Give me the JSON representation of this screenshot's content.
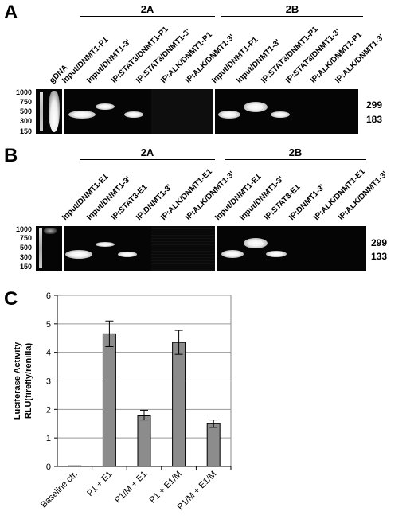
{
  "panelA": {
    "letter": "A",
    "groups": [
      "2A",
      "2B"
    ],
    "gdna_label": "gDNA",
    "ladder": [
      "1000",
      "750",
      "500",
      "300",
      "150"
    ],
    "lanes_2A": [
      "Input/DNMT1-P1",
      "Input/DNMT1-3'",
      "IP:STAT3/DNMT1-P1",
      "IP:STAT3/DNMT1-3'",
      "IP:ALK/DNMT1-P1",
      "IP:ALK/DNMT1-3'"
    ],
    "lanes_2B": [
      "Input/DNMT1-P1",
      "Input/DNMT1-3'",
      "IP:STAT3/DNMT1-P1",
      "IP:STAT3/DNMT1-3'",
      "IP:ALK/DNMT1-P1",
      "IP:ALK/DNMT1-3'"
    ],
    "band_sizes": [
      "299",
      "183"
    ]
  },
  "panelB": {
    "letter": "B",
    "groups": [
      "2A",
      "2B"
    ],
    "ladder": [
      "1000",
      "750",
      "500",
      "300",
      "150"
    ],
    "lanes_2A": [
      "Input/DNMT1-E1",
      "Input/DNMT1-3'",
      "IP:STAT3-E1",
      "IP:DNMT1-3'",
      "IP:ALK/DNMT1-E1",
      "IP:ALK/DNMT1-3'"
    ],
    "lanes_2B": [
      "Input/DNMT1-E1",
      "Input/DNMT1-3'",
      "IP:STAT3-E1",
      "IP:DNMT1-3'",
      "IP:ALK/DNMT1-E1",
      "IP:ALK/DNMT1-3'"
    ],
    "band_sizes": [
      "299",
      "133"
    ]
  },
  "panelC": {
    "letter": "C"
  },
  "chart_data": {
    "type": "bar",
    "categories": [
      "Baseline ctr.",
      "P1 + E1",
      "P1/M + E1",
      "P1 + E1/M",
      "P1/M + E1/M"
    ],
    "values": [
      0.02,
      4.65,
      1.8,
      4.35,
      1.5
    ],
    "errors": [
      0.0,
      0.45,
      0.17,
      0.42,
      0.13
    ],
    "ylabel_line1": "Luciferase Activity",
    "ylabel_line2": "RLU(firefly/renilla)",
    "ylim": [
      0,
      6
    ],
    "yticks": [
      "0",
      "1",
      "2",
      "3",
      "4",
      "5",
      "6"
    ],
    "grid": true,
    "bar_color": "#8c8c8c"
  }
}
